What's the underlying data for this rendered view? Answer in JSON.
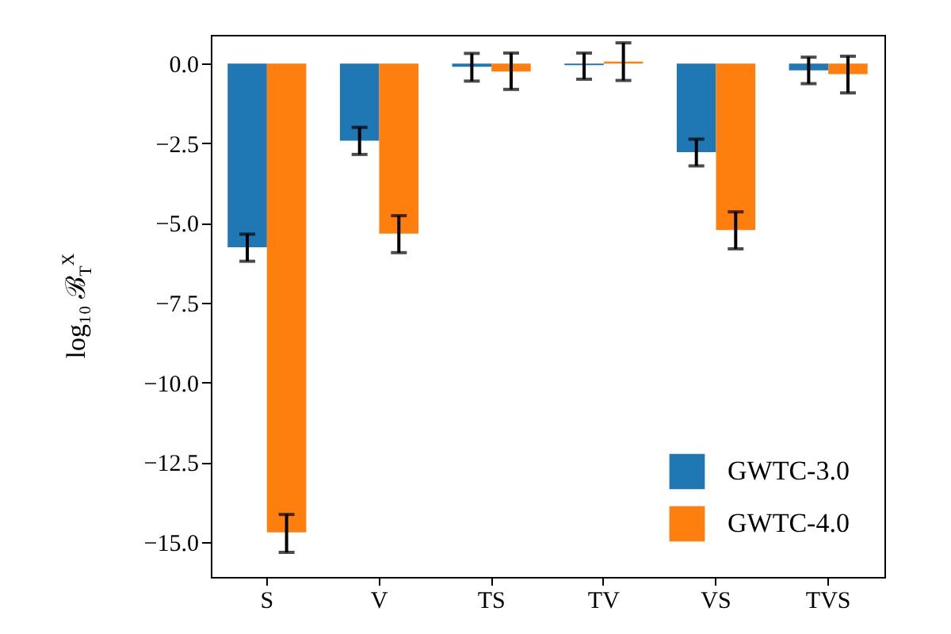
{
  "chart_data": {
    "type": "bar",
    "ylabel": "log₁₀ ℬ$_{T}$$^{X}$",
    "categories": [
      "S",
      "V",
      "TS",
      "TV",
      "VS",
      "TVS"
    ],
    "series": [
      {
        "name": "GWTC-3.0",
        "color": "#1f77b4",
        "values": [
          -5.76,
          -2.42,
          -0.1,
          -0.05,
          -2.78,
          -0.21
        ],
        "errors": [
          [
            -6.2,
            -5.35
          ],
          [
            -2.85,
            -2.0
          ],
          [
            -0.55,
            0.32
          ],
          [
            -0.49,
            0.33
          ],
          [
            -3.21,
            -2.37
          ],
          [
            -0.63,
            0.2
          ]
        ]
      },
      {
        "name": "GWTC-4.0",
        "color": "#ff7f0e",
        "values": [
          -14.7,
          -5.33,
          -0.25,
          0.06,
          -5.22,
          -0.33
        ],
        "errors": [
          [
            -15.33,
            -14.14
          ],
          [
            -5.93,
            -4.77
          ],
          [
            -0.81,
            0.33
          ],
          [
            -0.53,
            0.65
          ],
          [
            -5.81,
            -4.65
          ],
          [
            -0.92,
            0.23
          ]
        ]
      }
    ],
    "ylim": [
      -16.1,
      0.9
    ],
    "yticks": [
      {
        "value": 0,
        "label": "0.0"
      },
      {
        "value": -2.5,
        "label": "−2.5"
      },
      {
        "value": -5,
        "label": "−5.0"
      },
      {
        "value": -7.5,
        "label": "−7.5"
      },
      {
        "value": -10,
        "label": "−10.0"
      },
      {
        "value": -12.5,
        "label": "−12.5"
      },
      {
        "value": -15,
        "label": "−15.0"
      }
    ],
    "legend": "bottom right",
    "grid": false
  }
}
